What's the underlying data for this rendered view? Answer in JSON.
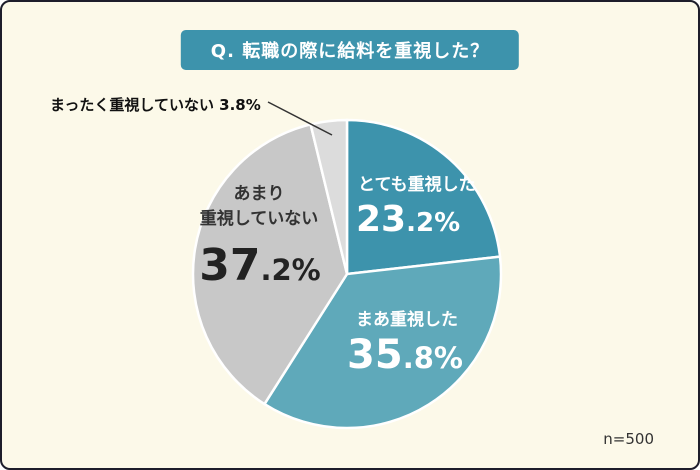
{
  "title": "Q. 転職の際に給料を重視した？",
  "sample_size": "n=500",
  "callout": {
    "text": "まったく重視していない 3.8%"
  },
  "labels": {
    "totemo_name": "とても重視した",
    "totemo_int": "23",
    "totemo_rest": ".2%",
    "maa_name": "まあ重視した",
    "maa_int": "35",
    "maa_rest": ".8%",
    "amari_line1": "あまり",
    "amari_line2": "重視していない",
    "amari_int": "37",
    "amari_rest": ".2%"
  },
  "colors": {
    "background": "#FCF9E9",
    "border": "#1D1D2B",
    "banner": "#3D93AC",
    "slice_gap": "#FFFFFF"
  },
  "chart_data": {
    "type": "pie",
    "title": "Q. 転職の際に給料を重視した？",
    "start_angle_deg": 0,
    "direction": "clockwise",
    "annotation": "n=500",
    "segments": [
      {
        "label": "とても重視した",
        "value": 23.2,
        "color": "#3D93AC",
        "text_color": "#FFFFFF"
      },
      {
        "label": "まあ重視した",
        "value": 35.8,
        "color": "#5FA9BA",
        "text_color": "#FFFFFF"
      },
      {
        "label": "あまり重視していない",
        "value": 37.2,
        "color": "#C8C8C8",
        "text_color": "#333333"
      },
      {
        "label": "まったく重視していない",
        "value": 3.8,
        "color": "#DCDCDC",
        "text_color": "#222222"
      }
    ]
  }
}
